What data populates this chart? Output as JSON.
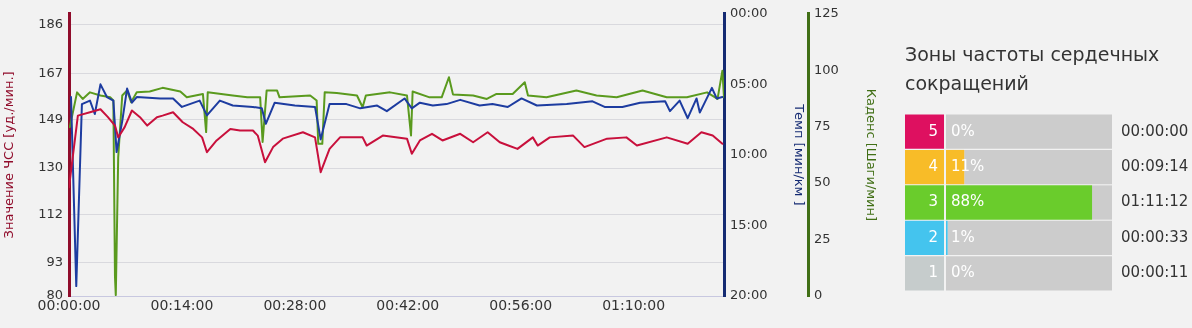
{
  "chart_data": [
    {
      "type": "line",
      "ylabel": "Значение ЧСС [уд./мин.]",
      "y2label": "Темп [мин/км ]",
      "y3label": "Каденс [Шаги/мин]",
      "xlim": [
        0,
        81.2
      ],
      "xticks": [
        {
          "value": 0,
          "label": "00:00:00"
        },
        {
          "value": 14,
          "label": "00:14:00"
        },
        {
          "value": 28,
          "label": "00:28:00"
        },
        {
          "value": 42,
          "label": "00:42:00"
        },
        {
          "value": 56,
          "label": "00:56:00"
        },
        {
          "value": 70,
          "label": "01:10:00"
        }
      ],
      "ylim": [
        80,
        190.3
      ],
      "yticks": [
        80,
        93,
        112,
        130,
        149,
        167,
        186
      ],
      "y2lim": [
        20,
        0
      ],
      "y2ticks": [
        {
          "value": 0,
          "label": "00:00"
        },
        {
          "value": 5,
          "label": "05:00"
        },
        {
          "value": 10,
          "label": "10:00"
        },
        {
          "value": 15,
          "label": "15:00"
        },
        {
          "value": 20,
          "label": "20:00"
        }
      ],
      "y3lim": [
        0,
        125
      ],
      "y3ticks": [
        0,
        25,
        50,
        75,
        100,
        125
      ],
      "grid": "y",
      "marker": "none",
      "line_style": "solid",
      "series": [
        {
          "color": "#c8103c",
          "axis": "y",
          "x": [
            0,
            1.1,
            2.6,
            3.9,
            4.8,
            5.7,
            6.1,
            6.9,
            7.8,
            8.8,
            9.7,
            10.9,
            11.6,
            12.9,
            14.1,
            15.4,
            16.5,
            17.1,
            18.3,
            20.0,
            21.2,
            22.8,
            23.4,
            24.3,
            25.3,
            26.5,
            29.0,
            30.5,
            31.2,
            32.3,
            33.6,
            36.4,
            36.9,
            38.9,
            41.9,
            42.5,
            43.5,
            45.0,
            46.3,
            48.5,
            50.1,
            51.9,
            53.4,
            55.6,
            57.5,
            58.1,
            59.6,
            62.5,
            63.9,
            66.7,
            69.1,
            70.4,
            74.1,
            76.7,
            78.4,
            79.8,
            81.0
          ],
          "values": [
            122.5,
            150.5,
            151.8,
            153,
            150,
            146.6,
            142,
            146,
            152.5,
            149.9,
            146.6,
            149.9,
            150.5,
            151.8,
            147.9,
            145.3,
            142,
            136.2,
            140.8,
            145.3,
            144.7,
            144.7,
            142.7,
            132.3,
            138.2,
            141.5,
            144,
            142,
            128.4,
            137.5,
            142,
            142,
            138.8,
            142.7,
            141.5,
            135.6,
            140.8,
            143.4,
            140.8,
            143.4,
            140.1,
            144,
            140.1,
            137.5,
            142,
            138.8,
            142,
            142.7,
            138.2,
            141.5,
            142,
            138.8,
            142,
            139.5,
            144,
            142.7,
            139.5
          ]
        },
        {
          "color": "#1d3ca0",
          "axis": "y2",
          "x": [
            0.25,
            0.9,
            1.6,
            2.6,
            3.2,
            3.9,
            4.7,
            5.5,
            5.9,
            6.6,
            7.2,
            7.8,
            8.4,
            11.3,
            12.9,
            14.0,
            16.2,
            17.1,
            18.7,
            20.3,
            22.8,
            23.9,
            24.4,
            25.5,
            28.0,
            30.5,
            31.2,
            32.3,
            34.4,
            36.1,
            38.2,
            39.4,
            41.6,
            42.5,
            43.5,
            45.1,
            46.8,
            48.5,
            50.9,
            52.5,
            54.4,
            56.1,
            58.0,
            61.7,
            64.9,
            66.4,
            68.6,
            70.8,
            73.9,
            74.5,
            75.7,
            76.7,
            77.8,
            78.2,
            79.7,
            80.3,
            81.0
          ],
          "values": [
            5.9,
            19.3,
            6.4,
            6.15,
            7.1,
            5.0,
            5.9,
            6.15,
            9.8,
            7.6,
            5.3,
            6.3,
            5.9,
            6.0,
            6.0,
            6.6,
            6.15,
            7.2,
            6.15,
            6.5,
            6.6,
            6.7,
            7.8,
            6.3,
            6.5,
            6.6,
            8.9,
            6.4,
            6.4,
            6.7,
            6.5,
            6.9,
            6.0,
            6.7,
            6.3,
            6.5,
            6.4,
            6.1,
            6.5,
            6.4,
            6.6,
            6.0,
            6.5,
            6.4,
            6.2,
            6.6,
            6.6,
            6.3,
            6.2,
            6.9,
            6.15,
            7.4,
            6.0,
            7.0,
            5.25,
            6.0,
            5.9
          ]
        },
        {
          "color": "#5a9a1e",
          "axis": "y3",
          "x": [
            0.1,
            1.0,
            1.7,
            2.6,
            3.9,
            5.1,
            5.5,
            5.7,
            5.8,
            6.1,
            6.6,
            7.2,
            7.7,
            8.4,
            10.0,
            11.6,
            13.8,
            14.6,
            16.6,
            17.0,
            17.2,
            20.3,
            22.1,
            23.7,
            24.0,
            24.5,
            25.8,
            26.1,
            29.9,
            30.7,
            30.9,
            31.4,
            31.7,
            33.2,
            35.7,
            36.4,
            36.8,
            39.8,
            41.9,
            42.4,
            42.6,
            44.7,
            46.2,
            47.1,
            47.6,
            50.1,
            51.8,
            53.0,
            55.0,
            56.5,
            56.9,
            59.2,
            62.9,
            65.4,
            67.9,
            71.1,
            74.1,
            76.6,
            79.1,
            80.4,
            81.0,
            81.2
          ],
          "values": [
            74.8,
            90.2,
            87.3,
            90.2,
            88.8,
            88,
            86.6,
            8.5,
            0.4,
            61.5,
            88.8,
            91,
            85.8,
            90.2,
            90.6,
            92.2,
            90.6,
            88,
            89.5,
            72.6,
            90.2,
            88.8,
            88,
            88,
            68.2,
            91,
            91,
            88,
            88.8,
            86.6,
            67.4,
            67.4,
            90.2,
            89.9,
            88.8,
            83.6,
            88.8,
            90.2,
            88.8,
            71.1,
            90.6,
            88,
            88,
            96.9,
            89.3,
            88.8,
            87.3,
            89.5,
            89.5,
            94.7,
            88.8,
            88,
            91,
            88.8,
            88,
            91,
            88,
            88,
            90.2,
            87.3,
            99.8,
            88
          ]
        }
      ]
    },
    {
      "type": "bar",
      "title": "Зоны частоты сердечных сокращений",
      "orientation": "horizontal",
      "stacked": true,
      "tick_labels": "y",
      "categories": [
        "5",
        "4",
        "3",
        "2",
        "1"
      ],
      "xlim": [
        0,
        100
      ],
      "series": [
        {
          "colors": [
            "#de1060",
            "#f8bc28",
            "#6acc2c",
            "#44c4ee",
            "#c6cccc"
          ],
          "values": [
            0,
            11,
            88,
            1,
            0
          ],
          "value_labels": [
            "0%",
            "11%",
            "88%",
            "1%",
            "0%"
          ]
        },
        {
          "color": "#cccccc",
          "values": [
            100,
            89,
            12,
            99,
            100
          ]
        }
      ],
      "annotations": [
        "00:00:00",
        "00:09:14",
        "01:11:12",
        "00:00:33",
        "00:00:11"
      ]
    }
  ]
}
